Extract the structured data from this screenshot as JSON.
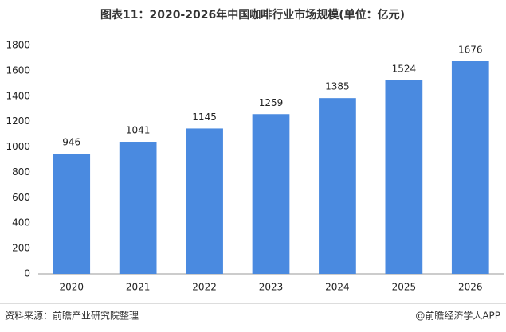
{
  "chart_data": {
    "type": "bar",
    "title": "图表11：2020-2026年中国咖啡行业市场规模(单位：亿元)",
    "categories": [
      "2020",
      "2021",
      "2022",
      "2023",
      "2024",
      "2025",
      "2026"
    ],
    "values": [
      946,
      1041,
      1145,
      1259,
      1385,
      1524,
      1676
    ],
    "color": "#4a8ae0",
    "ylim": [
      0,
      1800
    ],
    "yticks": [
      0,
      200,
      400,
      600,
      800,
      1000,
      1200,
      1400,
      1600,
      1800
    ],
    "grid": false,
    "source": "资料来源：前瞻产业研究院整理",
    "credit": "@前瞻经济学人APP"
  }
}
